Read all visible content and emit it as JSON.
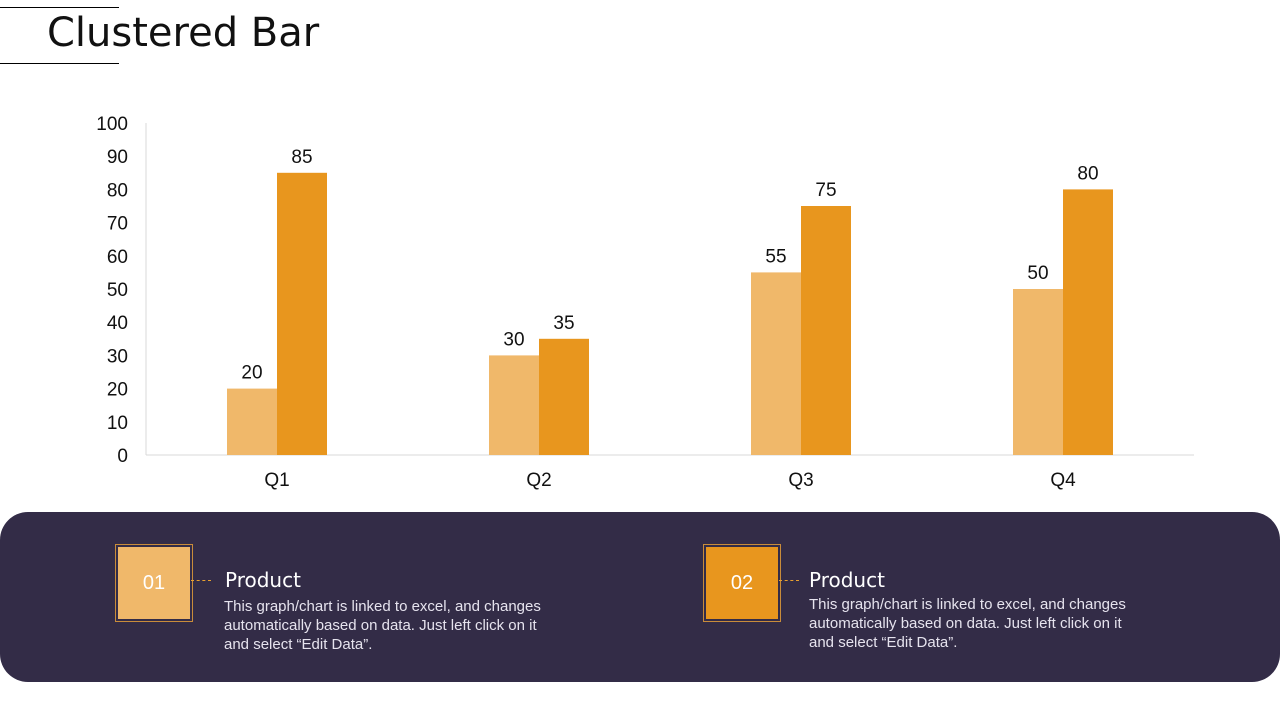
{
  "page": {
    "title": "Clustered Bar"
  },
  "chart_data": {
    "type": "bar",
    "title": "Clustered Bar",
    "categories": [
      "Q1",
      "Q2",
      "Q3",
      "Q4"
    ],
    "series": [
      {
        "name": "Product 01",
        "color": "#f0b86a",
        "values": [
          20,
          30,
          55,
          50
        ]
      },
      {
        "name": "Product 02",
        "color": "#e8961e",
        "values": [
          85,
          35,
          75,
          80
        ]
      }
    ],
    "yticks": [
      "0",
      "10",
      "20",
      "30",
      "40",
      "50",
      "60",
      "70",
      "80",
      "90",
      "100"
    ],
    "ylim": [
      0,
      100
    ],
    "xlabel": "",
    "ylabel": "",
    "grid": false
  },
  "legend": {
    "items": [
      {
        "number": "01",
        "heading": "Product",
        "description": "This graph/chart is linked to excel, and changes automatically based on data. Just left click on it and select “Edit Data”.",
        "color": "#f0b86a"
      },
      {
        "number": "02",
        "heading": "Product",
        "description": "This graph/chart is linked to excel, and changes automatically based on data. Just left click on it and select “Edit Data”.",
        "color": "#e8961e"
      }
    ],
    "panel_color": "#332c47"
  }
}
